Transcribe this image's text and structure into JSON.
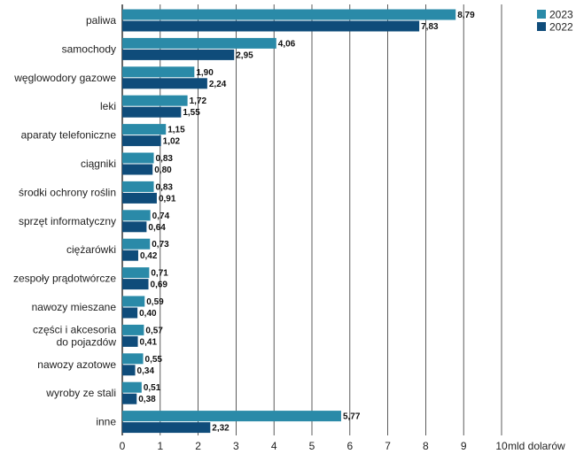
{
  "chart_data": {
    "type": "bar",
    "orientation": "horizontal",
    "title": "",
    "xlabel": "mld dolarów",
    "ylabel": "",
    "xlim": [
      0,
      10
    ],
    "grid": true,
    "legend_position": "top-right",
    "ticks": [
      "0",
      "1",
      "2",
      "3",
      "4",
      "5",
      "6",
      "7",
      "8",
      "9",
      "10"
    ],
    "categories": [
      [
        "paliwa"
      ],
      [
        "samochody"
      ],
      [
        "węglowodory gazowe"
      ],
      [
        "leki"
      ],
      [
        "aparaty telefoniczne"
      ],
      [
        "ciągniki"
      ],
      [
        "środki ochrony roślin"
      ],
      [
        "sprzęt informatyczny"
      ],
      [
        "ciężarówki"
      ],
      [
        "zespoły prądotwórcze"
      ],
      [
        "nawozy mieszane"
      ],
      [
        "części i akcesoria",
        "do pojazdów"
      ],
      [
        "nawozy azotowe"
      ],
      [
        "wyroby ze stali"
      ],
      [
        "inne"
      ]
    ],
    "series": [
      {
        "name": "2023",
        "color": "#2a8aa8",
        "values": [
          8.79,
          4.06,
          1.9,
          1.72,
          1.15,
          0.83,
          0.83,
          0.74,
          0.73,
          0.71,
          0.59,
          0.57,
          0.55,
          0.51,
          5.77
        ],
        "labels": [
          "8,79",
          "4,06",
          "1,90",
          "1,72",
          "1,15",
          "0,83",
          "0,83",
          "0,74",
          "0,73",
          "0,71",
          "0,59",
          "0,57",
          "0,55",
          "0,51",
          "5,77"
        ]
      },
      {
        "name": "2022",
        "color": "#0f4c7a",
        "values": [
          7.83,
          2.95,
          2.24,
          1.55,
          1.02,
          0.8,
          0.91,
          0.64,
          0.42,
          0.69,
          0.4,
          0.41,
          0.34,
          0.38,
          2.32
        ],
        "labels": [
          "7,83",
          "2,95",
          "2,24",
          "1,55",
          "1,02",
          "0,80",
          "0,91",
          "0,64",
          "0,42",
          "0,69",
          "0,40",
          "0,41",
          "0,34",
          "0,38",
          "2,32"
        ]
      }
    ]
  }
}
